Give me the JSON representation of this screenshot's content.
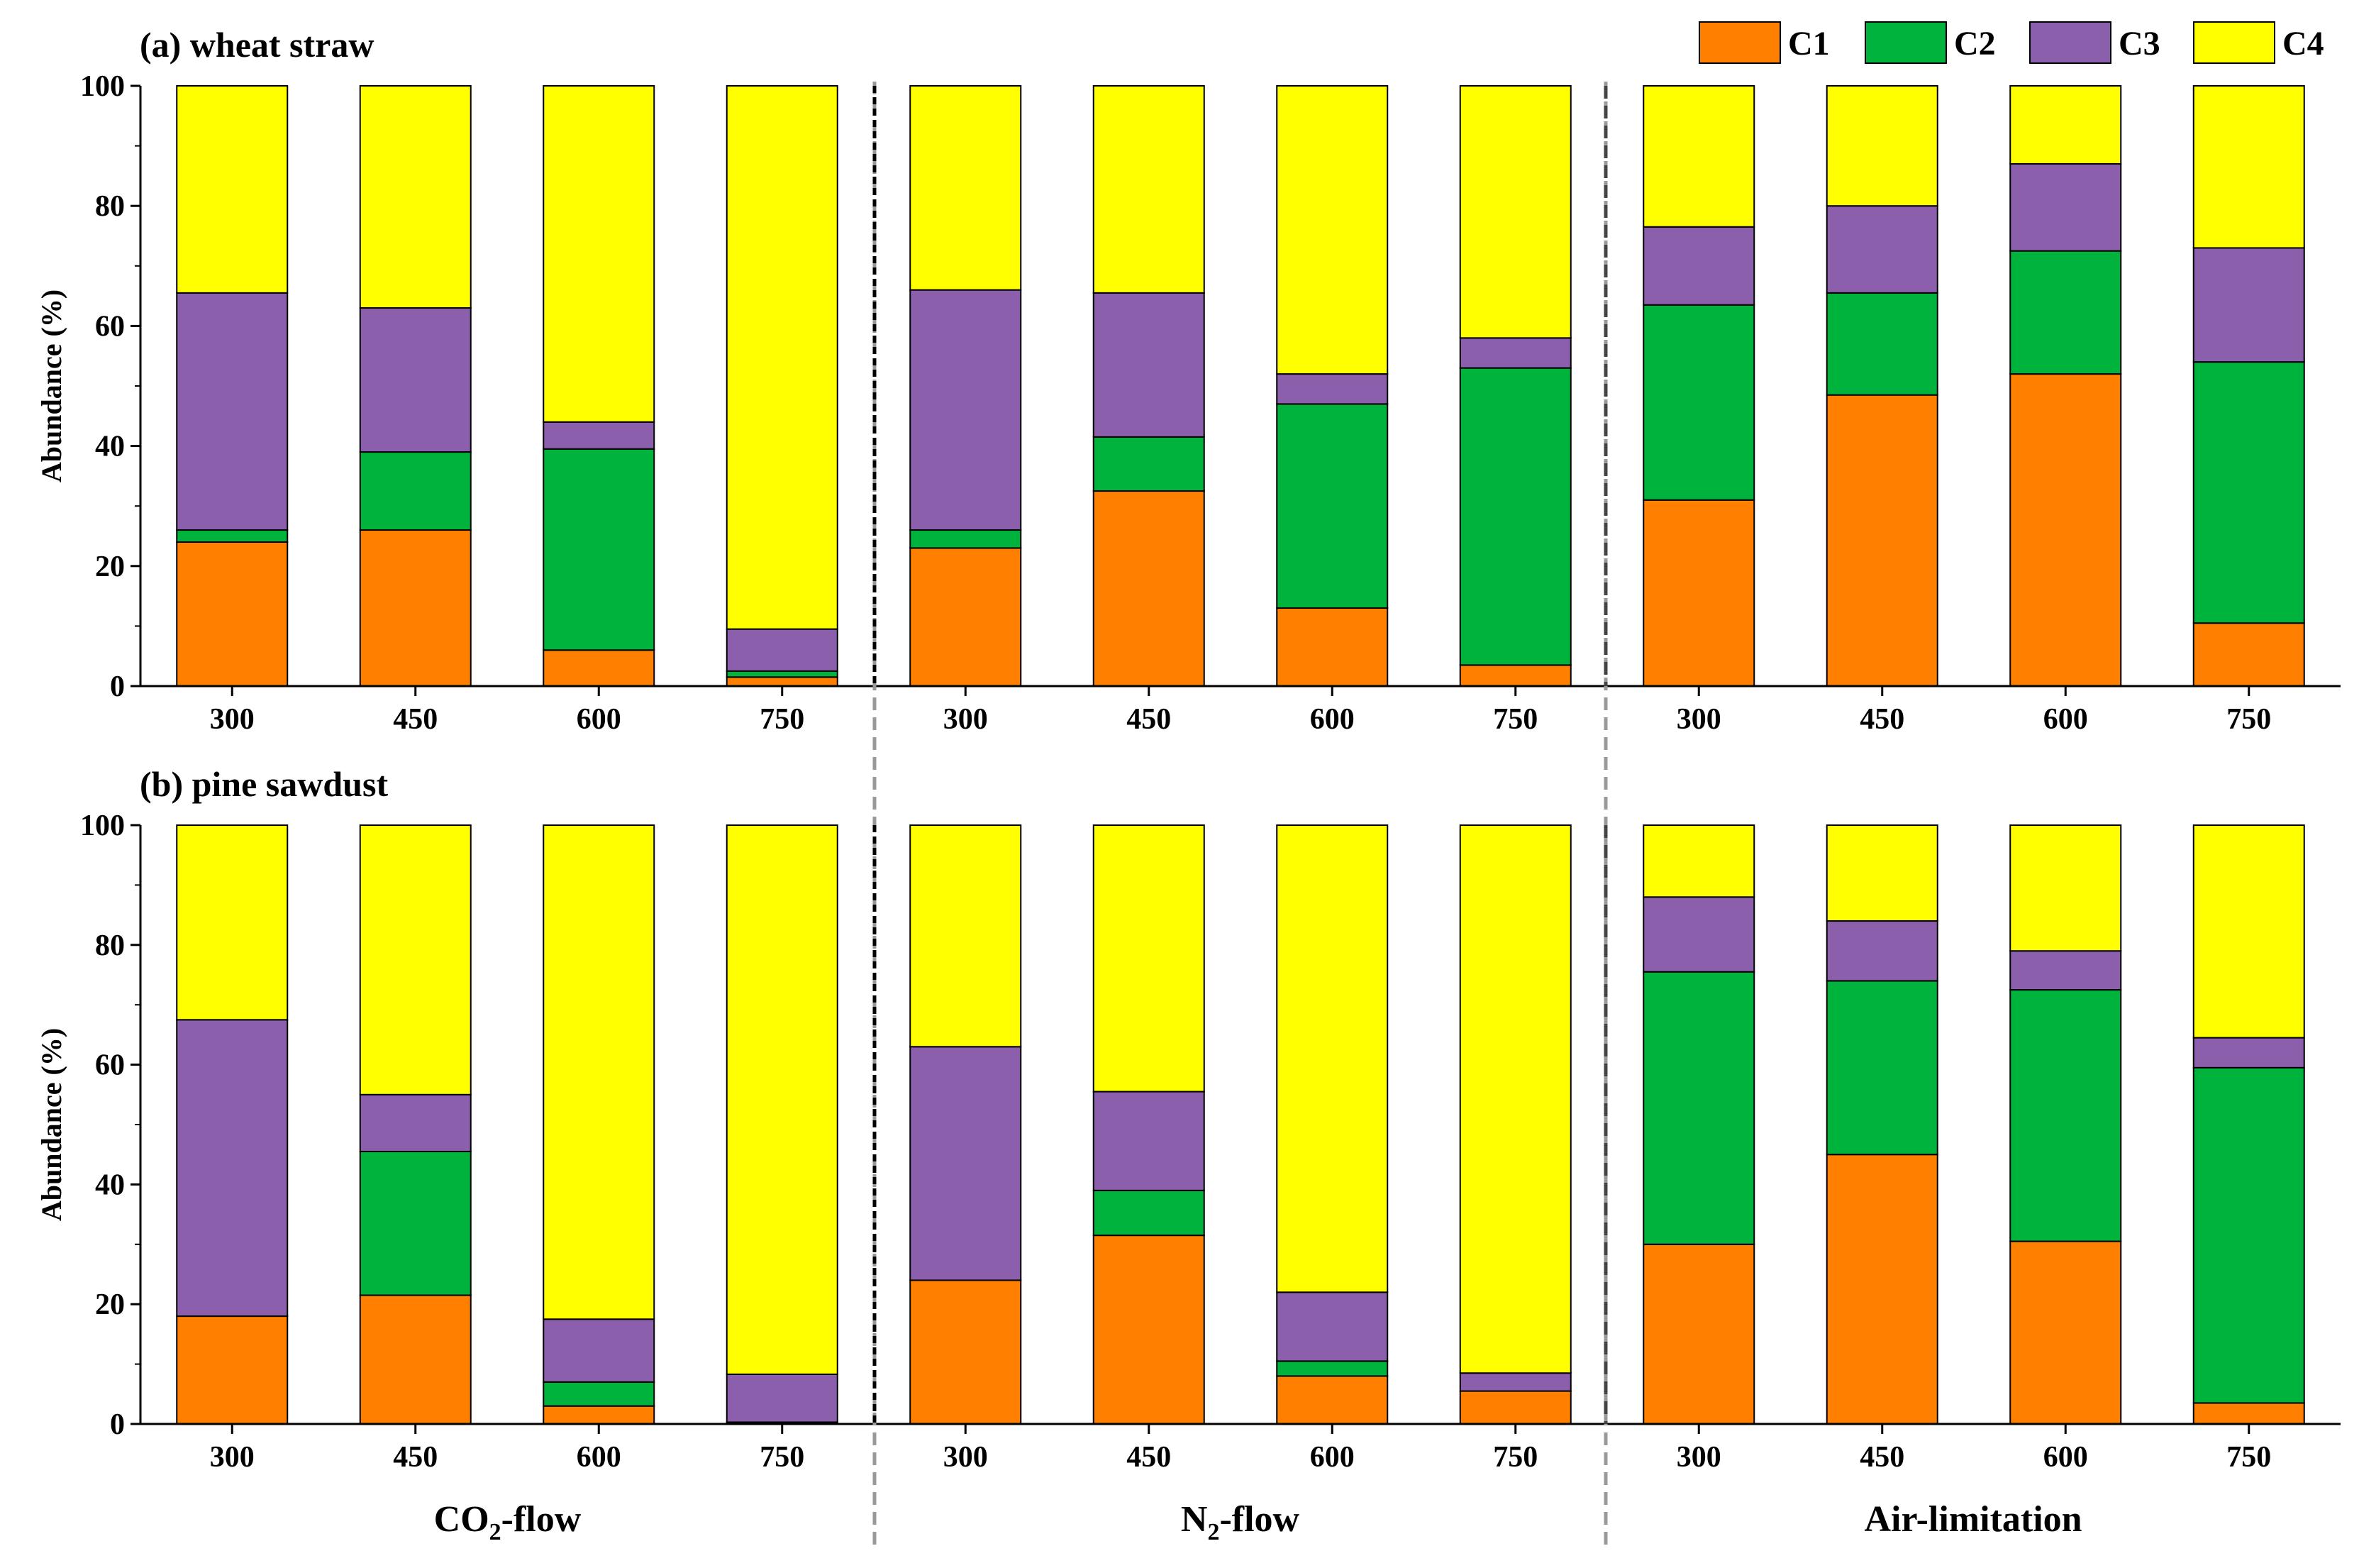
{
  "colors": {
    "C1": "#ff8000",
    "C2": "#00b33c",
    "C3": "#8c5fad",
    "C4": "#ffff00",
    "axis": "#000000",
    "divider_solid": "#000000",
    "divider_dashed": "#999999"
  },
  "legend": [
    {
      "key": "C1",
      "label": "C1"
    },
    {
      "key": "C2",
      "label": "C2"
    },
    {
      "key": "C3",
      "label": "C3"
    },
    {
      "key": "C4",
      "label": "C4"
    }
  ],
  "groups": [
    {
      "label_main": "CO",
      "label_sub": "2",
      "label_suffix": "-flow"
    },
    {
      "label_main": "N",
      "label_sub": "2",
      "label_suffix": "-flow"
    },
    {
      "label_main": "Air-limitation",
      "label_sub": "",
      "label_suffix": ""
    }
  ],
  "chart_data": [
    {
      "type": "bar",
      "stacked": true,
      "title": "(a) wheat straw",
      "ylabel": "Abundance (%)",
      "ylim": [
        0,
        100
      ],
      "yticks": [
        0,
        20,
        40,
        60,
        80,
        100
      ],
      "categories": [
        "300",
        "450",
        "600",
        "750",
        "300",
        "450",
        "600",
        "750",
        "300",
        "450",
        "600",
        "750"
      ],
      "series": [
        {
          "name": "C1",
          "values": [
            24,
            26,
            6,
            1.5,
            23,
            32.5,
            13,
            3.5,
            31,
            48.5,
            52,
            10.5
          ]
        },
        {
          "name": "C2",
          "values": [
            2,
            13,
            33.5,
            1,
            3,
            9,
            34,
            49.5,
            32.5,
            17,
            20.5,
            43.5
          ]
        },
        {
          "name": "C3",
          "values": [
            39.5,
            24,
            4.5,
            7,
            40,
            24,
            5,
            5,
            13,
            14.5,
            14.5,
            19
          ]
        },
        {
          "name": "C4",
          "values": [
            34.5,
            37,
            56,
            90.5,
            34,
            34.5,
            48,
            42,
            23.5,
            20,
            13,
            27
          ]
        }
      ]
    },
    {
      "type": "bar",
      "stacked": true,
      "title": "(b) pine sawdust",
      "ylabel": "Abundance (%)",
      "ylim": [
        0,
        100
      ],
      "yticks": [
        0,
        20,
        40,
        60,
        80,
        100
      ],
      "categories": [
        "300",
        "450",
        "600",
        "750",
        "300",
        "450",
        "600",
        "750",
        "300",
        "450",
        "600",
        "750"
      ],
      "series": [
        {
          "name": "C1",
          "values": [
            18,
            21.5,
            3,
            0.3,
            24,
            31.5,
            8,
            5.5,
            30,
            45,
            30.5,
            3.5
          ]
        },
        {
          "name": "C2",
          "values": [
            0,
            24,
            4,
            0,
            0,
            7.5,
            2.5,
            0,
            45.5,
            29,
            42,
            56
          ]
        },
        {
          "name": "C3",
          "values": [
            49.5,
            9.5,
            10.5,
            8,
            39,
            16.5,
            11.5,
            3,
            12.5,
            10,
            6.5,
            5
          ]
        },
        {
          "name": "C4",
          "values": [
            32.5,
            45,
            82.5,
            91.7,
            37,
            44.5,
            78,
            91.5,
            12,
            16,
            21,
            35.5
          ]
        }
      ]
    }
  ]
}
